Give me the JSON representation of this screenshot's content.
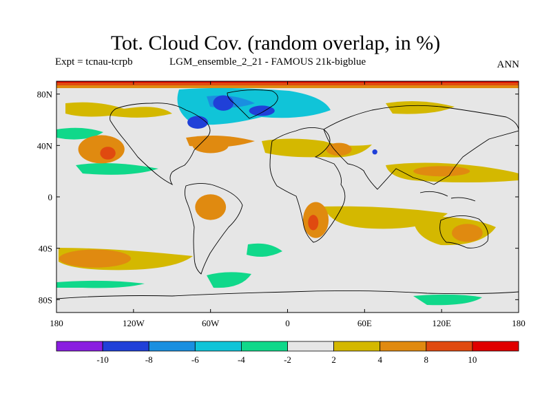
{
  "header": {
    "title": "Tot. Cloud Cov. (random overlap, in %)",
    "expt": "Expt = tcnau-tcrpb",
    "ensemble": "LGM_ensemble_2_21 - FAMOUS 21k-bigblue",
    "season": "ANN"
  },
  "map": {
    "lon_ticks": [
      {
        "value": -180,
        "label": "180"
      },
      {
        "value": -120,
        "label": "120W"
      },
      {
        "value": -60,
        "label": "60W"
      },
      {
        "value": 0,
        "label": "0"
      },
      {
        "value": 60,
        "label": "60E"
      },
      {
        "value": 120,
        "label": "120E"
      },
      {
        "value": 180,
        "label": "180"
      }
    ],
    "lat_ticks": [
      {
        "value": 80,
        "label": "80N"
      },
      {
        "value": 40,
        "label": "40N"
      },
      {
        "value": 0,
        "label": "0"
      },
      {
        "value": -40,
        "label": "40S"
      },
      {
        "value": -80,
        "label": "80S"
      }
    ],
    "lon_range": [
      -180,
      180
    ],
    "lat_range": [
      -90,
      90
    ],
    "background_color": "#e6e6e6",
    "anomalies": [
      {
        "lon": -145,
        "lat": 37,
        "rx": 18,
        "ry": 11,
        "level": "4 to 8"
      },
      {
        "lon": -140,
        "lat": 34,
        "rx": 6,
        "ry": 5,
        "level": "8 to 10"
      },
      {
        "lon": -150,
        "lat": -48,
        "rx": 28,
        "ry": 7,
        "level": "4 to 8"
      },
      {
        "lon": -60,
        "lat": 40,
        "rx": 14,
        "ry": 6,
        "level": "4 to 8"
      },
      {
        "lon": -60,
        "lat": -8,
        "rx": 12,
        "ry": 10,
        "level": "4 to 8"
      },
      {
        "lon": 22,
        "lat": -18,
        "rx": 10,
        "ry": 14,
        "level": "4 to 8"
      },
      {
        "lon": 20,
        "lat": -20,
        "rx": 4,
        "ry": 6,
        "level": "8 to 10"
      },
      {
        "lon": 40,
        "lat": 37,
        "rx": 10,
        "ry": 5,
        "level": "4 to 8"
      },
      {
        "lon": 120,
        "lat": 20,
        "rx": 22,
        "ry": 4,
        "level": "4 to 8"
      },
      {
        "lon": 140,
        "lat": -28,
        "rx": 12,
        "ry": 7,
        "level": "4 to 8"
      },
      {
        "lon": -50,
        "lat": 73,
        "rx": 8,
        "ry": 6,
        "level": "-10 to -8"
      },
      {
        "lon": -20,
        "lat": 67,
        "rx": 10,
        "ry": 4,
        "level": "-10 to -8"
      },
      {
        "lon": -70,
        "lat": 58,
        "rx": 8,
        "ry": 5,
        "level": "-10 to -8"
      },
      {
        "lon": 68,
        "lat": 35,
        "rx": 2,
        "ry": 2,
        "level": "-10 to -8"
      }
    ]
  },
  "colorbar": {
    "colors": [
      "#8a1ee0",
      "#2040d8",
      "#1a8fe0",
      "#10c4d8",
      "#10d88a",
      "#e6e6e6",
      "#d4b800",
      "#e08a10",
      "#e04a10",
      "#e00000"
    ],
    "labels": [
      "-10",
      "-8",
      "-6",
      "-4",
      "-2",
      "2",
      "4",
      "8",
      "10"
    ]
  }
}
